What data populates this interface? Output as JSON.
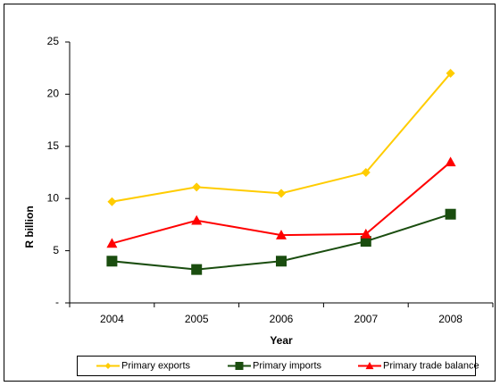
{
  "chart_data": {
    "type": "line",
    "categories": [
      "2004",
      "2005",
      "2006",
      "2007",
      "2008"
    ],
    "series": [
      {
        "name": "Primary exports",
        "color": "#ffcc00",
        "marker": "diamond",
        "values": [
          9.7,
          11.1,
          10.5,
          12.5,
          22.0
        ]
      },
      {
        "name": "Primary imports",
        "color": "#1a4d0f",
        "marker": "square",
        "values": [
          4.0,
          3.2,
          4.0,
          5.9,
          8.5
        ]
      },
      {
        "name": "Primary trade balance",
        "color": "#ff0000",
        "marker": "triangle",
        "values": [
          5.7,
          7.9,
          6.5,
          6.6,
          13.5
        ]
      }
    ],
    "ylim": [
      0,
      25
    ],
    "yticks": [
      {
        "value": 0,
        "label": "-"
      },
      5,
      10,
      15,
      20,
      25
    ],
    "ylabel": "R billion",
    "xlabel": "Year",
    "grid": false,
    "legend": "bottom"
  }
}
